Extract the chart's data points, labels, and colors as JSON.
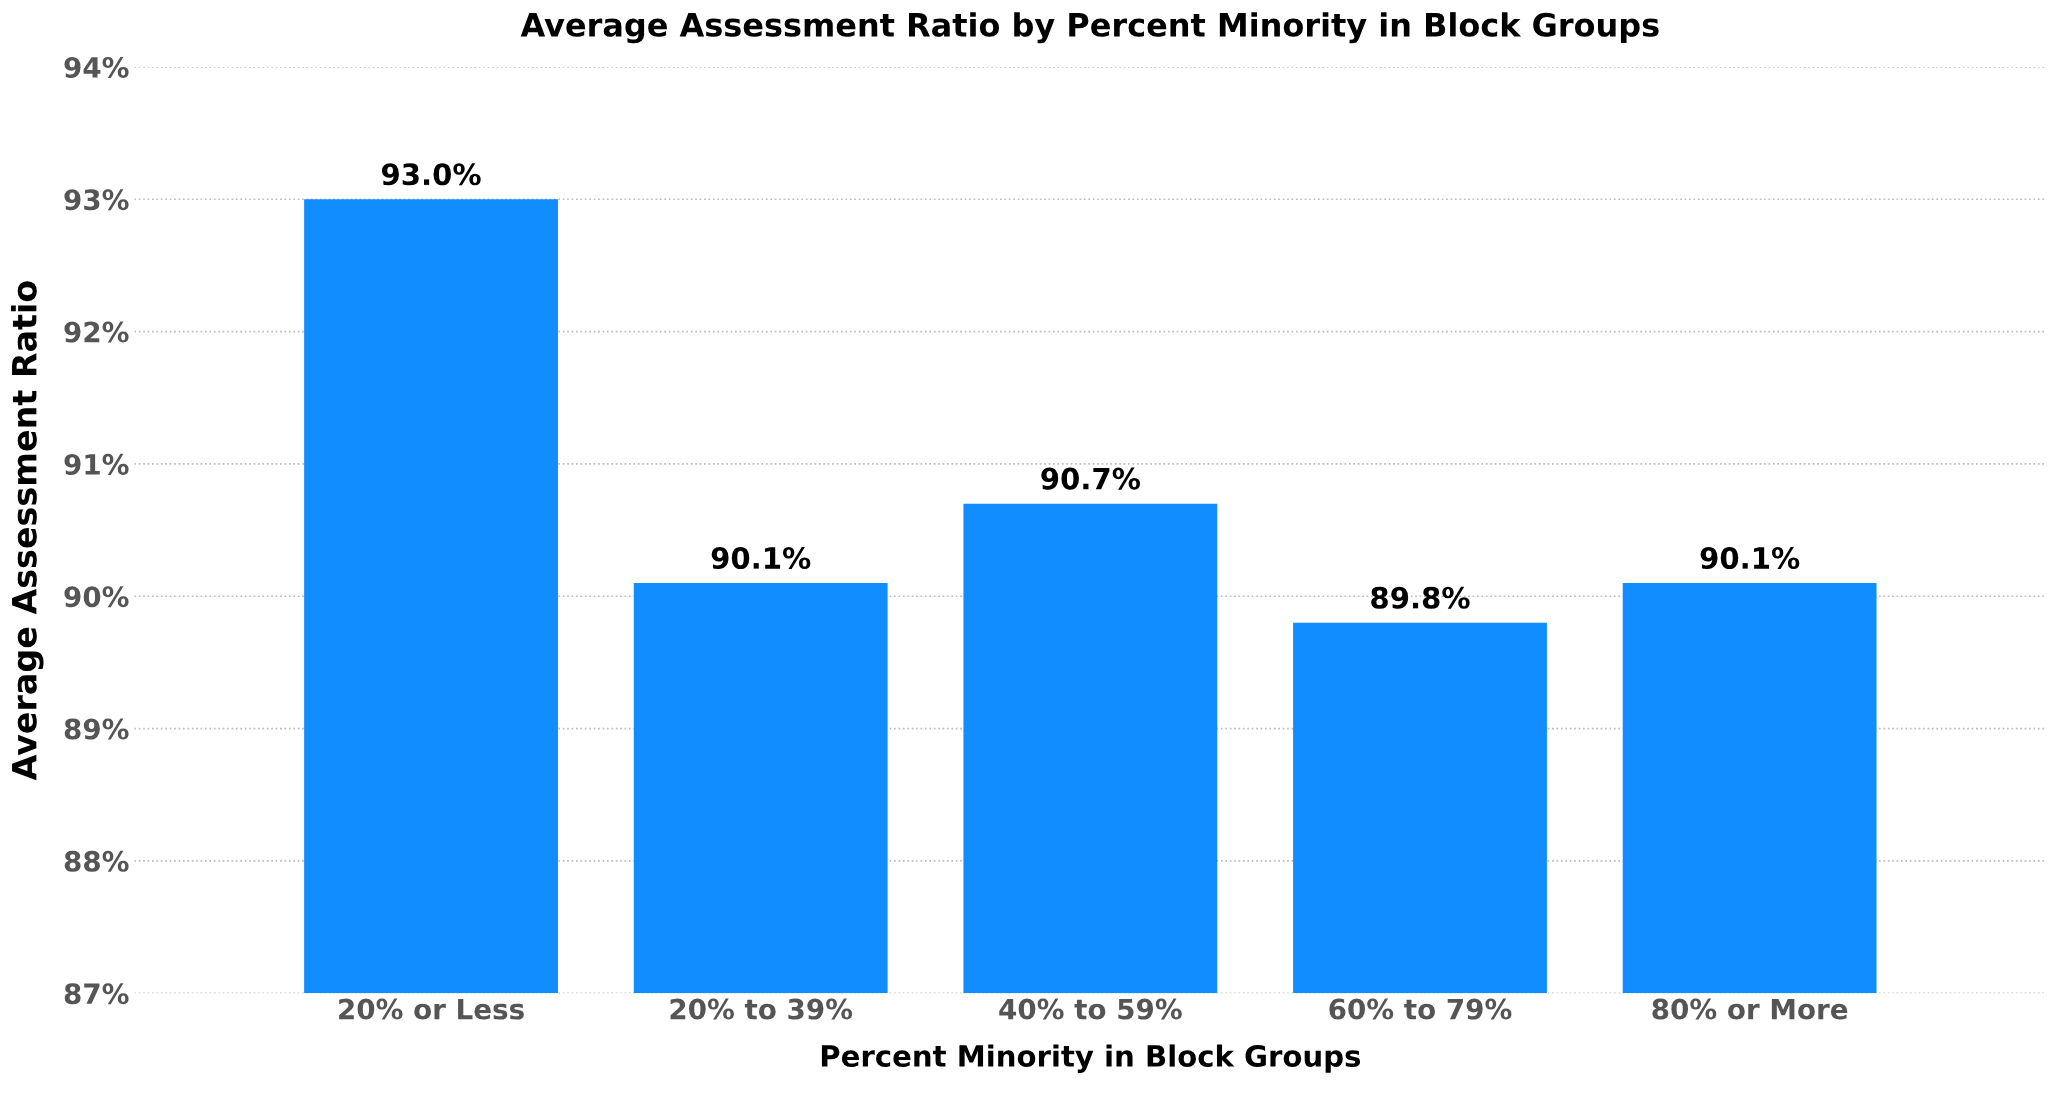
{
  "chart_data": {
    "type": "bar",
    "title": "Average Assessment Ratio by Percent Minority in Block Groups",
    "xlabel": "Percent Minority in Block Groups",
    "ylabel": "Average Assessment Ratio",
    "categories": [
      "20% or Less",
      "20% to 39%",
      "40% to 59%",
      "60% to 79%",
      "80% or More"
    ],
    "values": [
      93.0,
      90.1,
      90.7,
      89.8,
      90.1
    ],
    "value_labels": [
      "93.0%",
      "90.1%",
      "90.7%",
      "89.8%",
      "90.1%"
    ],
    "color": "#118dff",
    "ylim": [
      87,
      94
    ],
    "yticks": [
      {
        "value": 87,
        "label": "87%"
      },
      {
        "value": 88,
        "label": "88%"
      },
      {
        "value": 89,
        "label": "89%"
      },
      {
        "value": 90,
        "label": "90%"
      },
      {
        "value": 91,
        "label": "91%"
      },
      {
        "value": 92,
        "label": "92%"
      },
      {
        "value": 93,
        "label": "93%"
      },
      {
        "value": 94,
        "label": "94%"
      }
    ],
    "grid": "y"
  }
}
